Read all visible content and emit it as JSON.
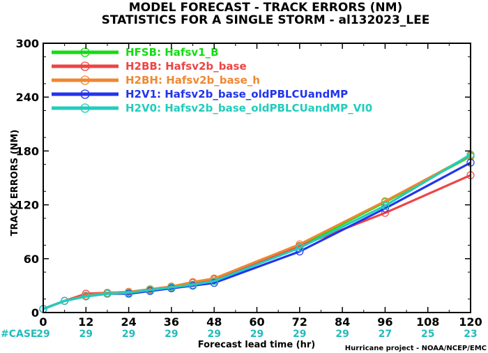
{
  "chart_data": {
    "type": "line",
    "title": "MODEL FORECAST - TRACK ERRORS (NM)",
    "subtitle": "STATISTICS FOR A SINGLE STORM - al132023_LEE",
    "xlabel": "Forecast lead time (hr)",
    "ylabel": "TRACK ERRORS (NM)",
    "xlim": [
      0,
      120
    ],
    "ylim": [
      0,
      300
    ],
    "xticks": [
      0,
      12,
      24,
      36,
      48,
      60,
      72,
      84,
      96,
      108,
      120
    ],
    "yticks": [
      0,
      60,
      120,
      180,
      240,
      300
    ],
    "ytick_labels": [
      "0",
      "60",
      "",
      "",
      "240",
      "300"
    ],
    "ytick_labels_full": [
      "0",
      "60",
      "120",
      "180",
      "240",
      "300"
    ],
    "legend_position": "top-left",
    "case_label": "#CASE",
    "cases": [
      "29",
      "29",
      "29",
      "29",
      "29",
      "29",
      "29",
      "29",
      "27",
      "25",
      "23"
    ],
    "credit": "Hurricane project - NOAA/NCEP/EMC",
    "series": [
      {
        "name": "HFSB: Hafsv1_B",
        "color": "#11dd11",
        "x": [
          0,
          6,
          12,
          18,
          24,
          30,
          36,
          42,
          48,
          72,
          96,
          120
        ],
        "y": [
          4,
          13,
          18,
          21,
          22,
          25,
          28,
          31,
          35,
          74,
          123,
          174
        ]
      },
      {
        "name": "H2BB: Hafsv2b_base",
        "color": "#ee4444",
        "x": [
          0,
          6,
          12,
          18,
          24,
          30,
          36,
          42,
          48,
          72,
          96,
          120
        ],
        "y": [
          4,
          13,
          21,
          22,
          23,
          26,
          29,
          33,
          37,
          74,
          111,
          153
        ]
      },
      {
        "name": "H2BH: Hafsv2b_base_h",
        "color": "#ee8833",
        "x": [
          0,
          6,
          12,
          18,
          24,
          30,
          36,
          42,
          48,
          72,
          96,
          120
        ],
        "y": [
          4,
          13,
          19,
          22,
          23,
          26,
          29,
          34,
          38,
          76,
          124,
          175
        ]
      },
      {
        "name": "H2V1: Hafsv2b_base_oldPBLCUandMP",
        "color": "#2233ee",
        "x": [
          0,
          6,
          12,
          18,
          24,
          30,
          36,
          42,
          48,
          72,
          96,
          120
        ],
        "y": [
          4,
          13,
          18,
          21,
          21,
          24,
          27,
          30,
          33,
          68,
          116,
          167
        ]
      },
      {
        "name": "H2V0: Hafsv2b_base_oldPBLCUandMP_VI0",
        "color": "#22ccbb",
        "x": [
          0,
          6,
          12,
          18,
          24,
          30,
          36,
          42,
          48,
          72,
          96,
          120
        ],
        "y": [
          4,
          13,
          18,
          21,
          22,
          25,
          28,
          31,
          35,
          72,
          119,
          176
        ]
      }
    ]
  }
}
